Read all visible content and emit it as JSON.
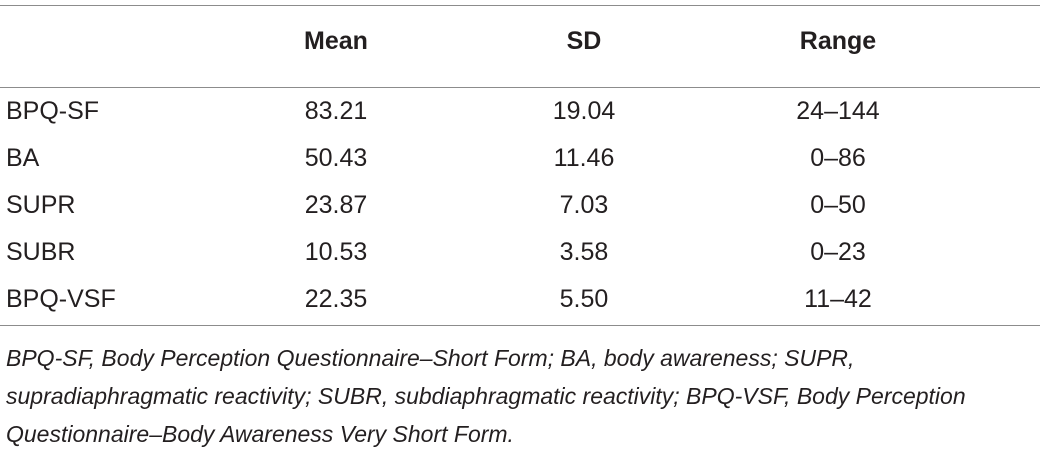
{
  "table": {
    "columns": [
      "",
      "Mean",
      "SD",
      "Range"
    ],
    "rows": [
      {
        "label": "BPQ-SF",
        "mean": "83.21",
        "sd": "19.04",
        "range": "24–144"
      },
      {
        "label": "BA",
        "mean": "50.43",
        "sd": "11.46",
        "range": "0–86"
      },
      {
        "label": "SUPR",
        "mean": "23.87",
        "sd": "7.03",
        "range": "0–50"
      },
      {
        "label": "SUBR",
        "mean": "10.53",
        "sd": "3.58",
        "range": "0–23"
      },
      {
        "label": "BPQ-VSF",
        "mean": "22.35",
        "sd": "5.50",
        "range": "11–42"
      }
    ],
    "footnote": "BPQ-SF, Body Perception Questionnaire–Short Form; BA, body awareness; SUPR, supradiaphragmatic reactivity; SUBR, subdiaphragmatic reactivity; BPQ-VSF, Body Perception Questionnaire–Body Awareness Very Short Form."
  }
}
